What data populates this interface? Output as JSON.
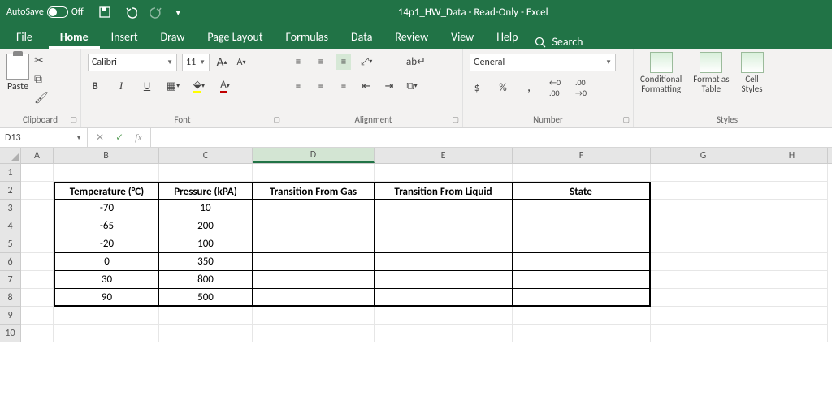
{
  "titlebar": {
    "autosave_label": "AutoSave",
    "autosave_state": "Off",
    "document": "14p1_HW_Data  -  Read-Only  -  Excel"
  },
  "tabs": {
    "file": "File",
    "home": "Home",
    "insert": "Insert",
    "draw": "Draw",
    "pagelayout": "Page Layout",
    "formulas": "Formulas",
    "data": "Data",
    "review": "Review",
    "view": "View",
    "help": "Help",
    "search": "Search"
  },
  "ribbon": {
    "clipboard": {
      "label": "Clipboard",
      "paste": "Paste"
    },
    "font": {
      "label": "Font",
      "name": "Calibri",
      "size": "11",
      "bold": "B",
      "italic": "I",
      "underline": "U"
    },
    "alignment": {
      "label": "Alignment"
    },
    "number": {
      "label": "Number",
      "format": "General",
      "currency": "$",
      "percent": "%",
      "comma": ","
    },
    "styles": {
      "label": "Styles",
      "cond": "Conditional\nFormatting",
      "table": "Format as\nTable",
      "cell": "Cell\nStyles"
    }
  },
  "namebox": {
    "ref": "D13"
  },
  "columns": [
    "A",
    "B",
    "C",
    "D",
    "E",
    "F",
    "G",
    "H"
  ],
  "table": {
    "headers": [
      "Temperature (°C)",
      "Pressure (kPA)",
      "Transition From Gas",
      "Transition From Liquid",
      "State"
    ],
    "rows": [
      [
        "-70",
        "10",
        "",
        "",
        ""
      ],
      [
        "-65",
        "200",
        "",
        "",
        ""
      ],
      [
        "-20",
        "100",
        "",
        "",
        ""
      ],
      [
        "0",
        "350",
        "",
        "",
        ""
      ],
      [
        "30",
        "800",
        "",
        "",
        ""
      ],
      [
        "90",
        "500",
        "",
        "",
        ""
      ]
    ]
  }
}
